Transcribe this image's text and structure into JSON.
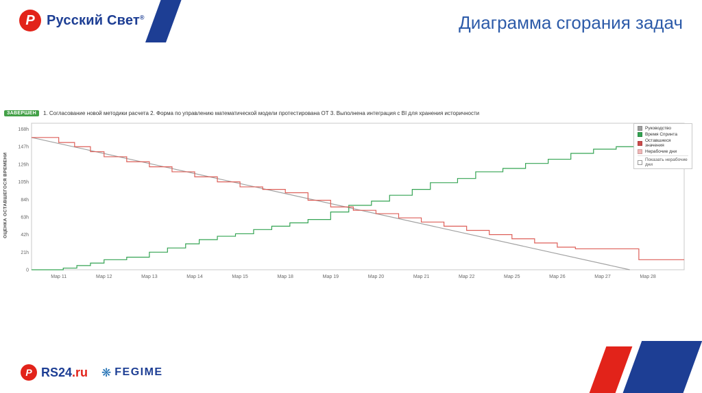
{
  "header": {
    "title": "Диаграмма сгорания задач",
    "logo": {
      "monogram": "Р",
      "brand": "Русский Свет",
      "reg": "®"
    }
  },
  "chart": {
    "badge": "ЗАВЕРШЕН",
    "tasks": "1. Согласование новой методики расчета 2. Форма по управлению математической модели протестирована ОТ 3. Выполнена интеграция с BI для хранения историчности",
    "ylabel": "ОЦЕНКА ОСТАВШЕГОСЯ ВРЕМЕНИ"
  },
  "chart_data": {
    "type": "line",
    "title": "Диаграмма сгорания задач",
    "x_labels": [
      "Мар 11",
      "Мар 12",
      "Мар 13",
      "Мар 14",
      "Мар 15",
      "Мар 18",
      "Мар 19",
      "Мар 20",
      "Мар 21",
      "Мар 22",
      "Мар 25",
      "Мар 26",
      "Мар 27",
      "Мар 28"
    ],
    "y_ticks": [
      {
        "value": 168,
        "label": "168h"
      },
      {
        "value": 147,
        "label": "147h"
      },
      {
        "value": 126,
        "label": "126h"
      },
      {
        "value": 105,
        "label": "105h"
      },
      {
        "value": 84,
        "label": "84h"
      },
      {
        "value": 63,
        "label": "63h"
      },
      {
        "value": 42,
        "label": "42h"
      },
      {
        "value": 21,
        "label": "21h"
      },
      {
        "value": 0,
        "label": "0"
      }
    ],
    "ylim": [
      0,
      175
    ],
    "grid": false,
    "legend_position": "top-right",
    "series": [
      {
        "name": "Руководство",
        "color": "#a0a0a0",
        "step": false,
        "points": [
          [
            -0.6,
            158
          ],
          [
            12.6,
            0
          ]
        ]
      },
      {
        "name": "Время Спринта",
        "color": "#33a352",
        "step": true,
        "points": [
          [
            -0.6,
            0
          ],
          [
            0.1,
            2
          ],
          [
            0.4,
            5
          ],
          [
            0.7,
            8
          ],
          [
            1,
            12
          ],
          [
            1.5,
            15
          ],
          [
            2,
            21
          ],
          [
            2.4,
            26
          ],
          [
            2.8,
            31
          ],
          [
            3.1,
            36
          ],
          [
            3.5,
            40
          ],
          [
            3.9,
            43
          ],
          [
            4.3,
            48
          ],
          [
            4.7,
            52
          ],
          [
            5.1,
            56
          ],
          [
            5.5,
            60
          ],
          [
            6,
            69
          ],
          [
            6.4,
            77
          ],
          [
            6.9,
            82
          ],
          [
            7.3,
            89
          ],
          [
            7.8,
            96
          ],
          [
            8.2,
            104
          ],
          [
            8.8,
            109
          ],
          [
            9.2,
            117
          ],
          [
            9.8,
            121
          ],
          [
            10.3,
            127
          ],
          [
            10.8,
            132
          ],
          [
            11.3,
            139
          ],
          [
            11.8,
            144
          ],
          [
            12.3,
            147
          ],
          [
            12.8,
            150
          ],
          [
            13.8,
            150
          ]
        ]
      },
      {
        "name": "Оставшиеся значения",
        "color": "#dd5f58",
        "step": true,
        "points": [
          [
            -0.6,
            158
          ],
          [
            0,
            152
          ],
          [
            0.35,
            147
          ],
          [
            0.7,
            141
          ],
          [
            1,
            135
          ],
          [
            1.5,
            129
          ],
          [
            2,
            123
          ],
          [
            2.5,
            117
          ],
          [
            3,
            111
          ],
          [
            3.5,
            105
          ],
          [
            4,
            99
          ],
          [
            4.5,
            96
          ],
          [
            5,
            92
          ],
          [
            5.5,
            83
          ],
          [
            6,
            75
          ],
          [
            6.5,
            71
          ],
          [
            7,
            67
          ],
          [
            7.5,
            62
          ],
          [
            8,
            57
          ],
          [
            8.5,
            52
          ],
          [
            9,
            47
          ],
          [
            9.5,
            42
          ],
          [
            10,
            37
          ],
          [
            10.5,
            32
          ],
          [
            11,
            27
          ],
          [
            11.4,
            25
          ],
          [
            12.6,
            25
          ],
          [
            12.8,
            12
          ],
          [
            13.8,
            12
          ]
        ]
      }
    ],
    "legend_items": [
      {
        "label": "Руководство",
        "color": "#a0a0a0"
      },
      {
        "label": "Время Спринта",
        "color": "#33a352"
      },
      {
        "label": "Оставшиеся значения",
        "color": "#cc4b4b"
      },
      {
        "label": "Нерабочие дни",
        "color": "#f0b8b8"
      }
    ],
    "legend_checkbox": "Показать нерабочие дни"
  },
  "footer": {
    "rs24": {
      "monogram": "Р",
      "text_blue": "RS24",
      "text_red": ".ru"
    },
    "fegime": {
      "icon": "gear-flower-icon",
      "text": "FEGIME"
    }
  },
  "colors": {
    "brand_blue": "#1d3e94",
    "brand_red": "#e2231a",
    "title_blue": "#2d5ba9",
    "badge_green": "#43a047"
  }
}
